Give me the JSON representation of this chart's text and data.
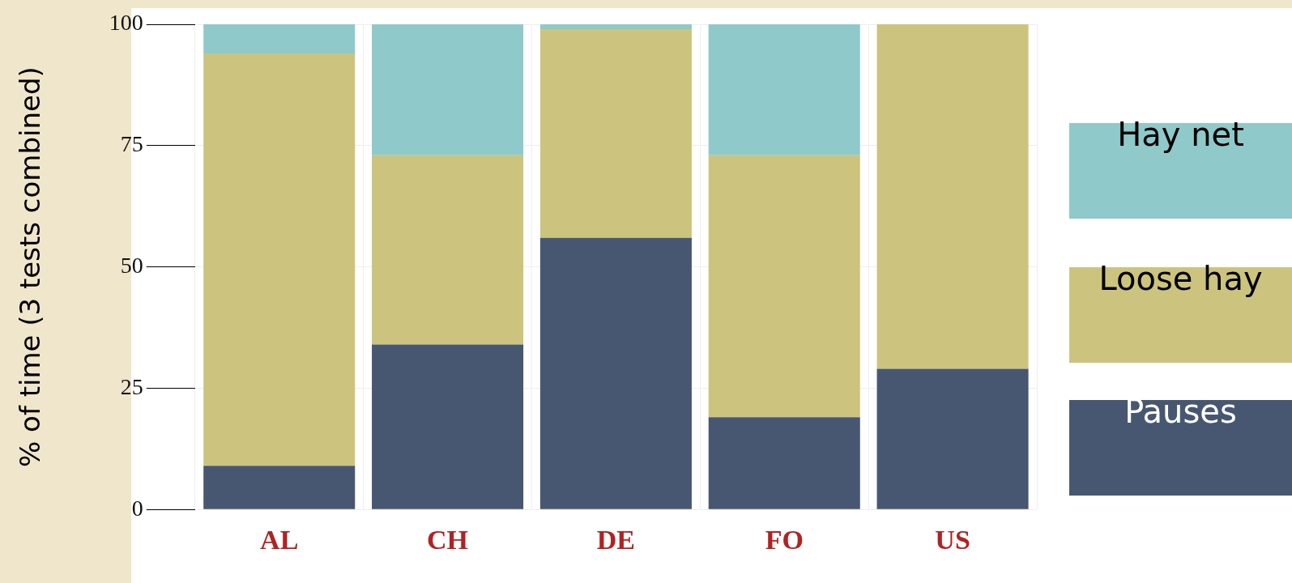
{
  "chart_data": {
    "type": "bar",
    "stacked": true,
    "ylabel": "% of time (3 tests combined)",
    "categories": [
      "AL",
      "CH",
      "DE",
      "FO",
      "US"
    ],
    "series": [
      {
        "name": "Pauses",
        "color": "#485771",
        "values": [
          9,
          34,
          56,
          19,
          29
        ]
      },
      {
        "name": "Loose hay",
        "color": "#ccc47e",
        "values": [
          85,
          39,
          43,
          54,
          71
        ]
      },
      {
        "name": "Hay net",
        "color": "#8fc9ca",
        "values": [
          6,
          27,
          1,
          27,
          0
        ]
      }
    ],
    "ylim": [
      0,
      100
    ],
    "yticks": [
      0,
      25,
      50,
      75,
      100
    ],
    "grid": true,
    "legend": "right"
  }
}
